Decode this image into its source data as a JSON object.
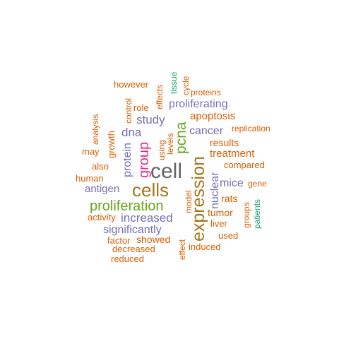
{
  "palette": {
    "orange": "#D95F02",
    "purple": "#7570B3",
    "teal": "#1B9E77",
    "pink": "#E7298A",
    "green": "#66A61E",
    "gold": "#A6761D",
    "gray": "#666666"
  },
  "words": [
    {
      "text": "cell",
      "color": "gray",
      "rotate": false
    },
    {
      "text": "cells",
      "color": "gold",
      "rotate": false
    },
    {
      "text": "expression",
      "color": "gold",
      "rotate": true
    },
    {
      "text": "proliferation",
      "color": "green",
      "rotate": false
    },
    {
      "text": "pcna",
      "color": "green",
      "rotate": true
    },
    {
      "text": "group",
      "color": "pink",
      "rotate": true
    },
    {
      "text": "increased",
      "color": "purple",
      "rotate": false
    },
    {
      "text": "significantly",
      "color": "purple",
      "rotate": false
    },
    {
      "text": "proliferating",
      "color": "purple",
      "rotate": false
    },
    {
      "text": "dna",
      "color": "purple",
      "rotate": false
    },
    {
      "text": "study",
      "color": "purple",
      "rotate": false
    },
    {
      "text": "cancer",
      "color": "purple",
      "rotate": false
    },
    {
      "text": "nuclear",
      "color": "purple",
      "rotate": true
    },
    {
      "text": "mice",
      "color": "purple",
      "rotate": false
    },
    {
      "text": "protein",
      "color": "purple",
      "rotate": true
    },
    {
      "text": "antigen",
      "color": "purple",
      "rotate": false
    },
    {
      "text": "apoptosis",
      "color": "orange",
      "rotate": false
    },
    {
      "text": "treatment",
      "color": "orange",
      "rotate": false
    },
    {
      "text": "results",
      "color": "orange",
      "rotate": false
    },
    {
      "text": "compared",
      "color": "orange",
      "rotate": false
    },
    {
      "text": "rats",
      "color": "orange",
      "rotate": false
    },
    {
      "text": "tumor",
      "color": "orange",
      "rotate": false
    },
    {
      "text": "liver",
      "color": "orange",
      "rotate": false
    },
    {
      "text": "used",
      "color": "orange",
      "rotate": false
    },
    {
      "text": "induced",
      "color": "orange",
      "rotate": false
    },
    {
      "text": "showed",
      "color": "orange",
      "rotate": false
    },
    {
      "text": "decreased",
      "color": "orange",
      "rotate": false
    },
    {
      "text": "reduced",
      "color": "orange",
      "rotate": false
    },
    {
      "text": "factor",
      "color": "orange",
      "rotate": false
    },
    {
      "text": "activity",
      "color": "orange",
      "rotate": false
    },
    {
      "text": "human",
      "color": "orange",
      "rotate": false
    },
    {
      "text": "also",
      "color": "orange",
      "rotate": false
    },
    {
      "text": "may",
      "color": "orange",
      "rotate": false
    },
    {
      "text": "analysis",
      "color": "orange",
      "rotate": true
    },
    {
      "text": "growth",
      "color": "orange",
      "rotate": true
    },
    {
      "text": "control",
      "color": "orange",
      "rotate": true
    },
    {
      "text": "role",
      "color": "orange",
      "rotate": false
    },
    {
      "text": "however",
      "color": "orange",
      "rotate": false
    },
    {
      "text": "effects",
      "color": "orange",
      "rotate": true
    },
    {
      "text": "cycle",
      "color": "orange",
      "rotate": true
    },
    {
      "text": "proteins",
      "color": "orange",
      "rotate": false
    },
    {
      "text": "replication",
      "color": "orange",
      "rotate": false
    },
    {
      "text": "gene",
      "color": "orange",
      "rotate": false
    },
    {
      "text": "groups",
      "color": "orange",
      "rotate": true
    },
    {
      "text": "model",
      "color": "orange",
      "rotate": true
    },
    {
      "text": "effect",
      "color": "orange",
      "rotate": true
    },
    {
      "text": "using",
      "color": "orange",
      "rotate": true
    },
    {
      "text": "levels",
      "color": "orange",
      "rotate": true
    },
    {
      "text": "tissue",
      "color": "teal",
      "rotate": true
    },
    {
      "text": "patients",
      "color": "teal",
      "rotate": true
    }
  ]
}
